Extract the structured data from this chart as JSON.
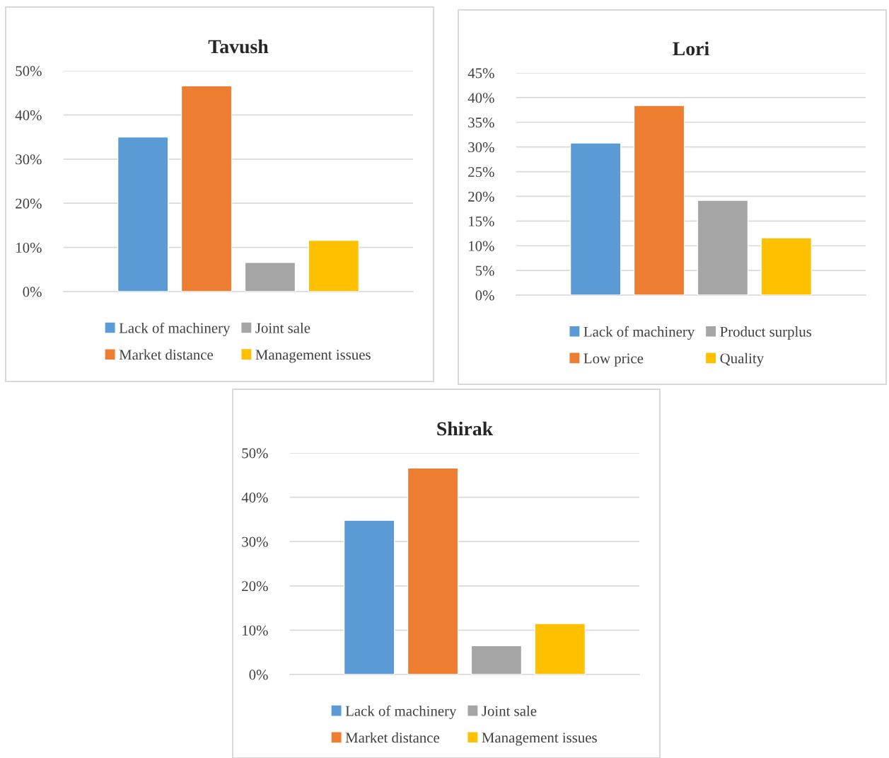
{
  "chart_data": [
    {
      "type": "bar",
      "title": "Tavush",
      "categories": [
        null
      ],
      "ylim": [
        0,
        50
      ],
      "yticks": [
        {
          "value": 0,
          "label": "0%"
        },
        {
          "value": 10,
          "label": "10%"
        },
        {
          "value": 20,
          "label": "20%"
        },
        {
          "value": 30,
          "label": "30%"
        },
        {
          "value": 40,
          "label": "40%"
        },
        {
          "value": 50,
          "label": "50%"
        }
      ],
      "grid": "y",
      "legend": "bottom",
      "series": [
        {
          "name": "Lack of machinery",
          "color": "#5b9bd5",
          "values": [
            35
          ]
        },
        {
          "name": "Market distance",
          "color": "#ed7d31",
          "values": [
            46.6
          ]
        },
        {
          "name": "Joint sale",
          "color": "#a5a5a5",
          "values": [
            6.6
          ]
        },
        {
          "name": "Management issues",
          "color": "#ffc000",
          "values": [
            11.6
          ]
        }
      ]
    },
    {
      "type": "bar",
      "title": "Lori",
      "categories": [
        null
      ],
      "ylim": [
        0,
        45
      ],
      "yticks": [
        {
          "value": 0,
          "label": "0%"
        },
        {
          "value": 5,
          "label": "5%"
        },
        {
          "value": 10,
          "label": "10%"
        },
        {
          "value": 15,
          "label": "15%"
        },
        {
          "value": 20,
          "label": "20%"
        },
        {
          "value": 25,
          "label": "25%"
        },
        {
          "value": 30,
          "label": "30%"
        },
        {
          "value": 35,
          "label": "35%"
        },
        {
          "value": 40,
          "label": "40%"
        },
        {
          "value": 45,
          "label": "45%"
        }
      ],
      "grid": "y",
      "legend": "bottom",
      "series": [
        {
          "name": "Lack of machinery",
          "color": "#5b9bd5",
          "values": [
            30.8
          ]
        },
        {
          "name": "Low price",
          "color": "#ed7d31",
          "values": [
            38.4
          ]
        },
        {
          "name": "Product surplus",
          "color": "#a5a5a5",
          "values": [
            19.2
          ]
        },
        {
          "name": "Quality",
          "color": "#ffc000",
          "values": [
            11.6
          ]
        }
      ]
    },
    {
      "type": "bar",
      "title": "Shirak",
      "categories": [
        null
      ],
      "ylim": [
        0,
        50
      ],
      "yticks": [
        {
          "value": 0,
          "label": "0%"
        },
        {
          "value": 10,
          "label": "10%"
        },
        {
          "value": 20,
          "label": "20%"
        },
        {
          "value": 30,
          "label": "30%"
        },
        {
          "value": 40,
          "label": "40%"
        },
        {
          "value": 50,
          "label": "50%"
        }
      ],
      "grid": "y",
      "legend": "bottom",
      "series": [
        {
          "name": "Lack of machinery",
          "color": "#5b9bd5",
          "values": [
            34.8
          ]
        },
        {
          "name": "Market distance",
          "color": "#ed7d31",
          "values": [
            46.6
          ]
        },
        {
          "name": "Joint sale",
          "color": "#a5a5a5",
          "values": [
            6.5
          ]
        },
        {
          "name": "Management issues",
          "color": "#ffc000",
          "values": [
            11.5
          ]
        }
      ]
    }
  ]
}
